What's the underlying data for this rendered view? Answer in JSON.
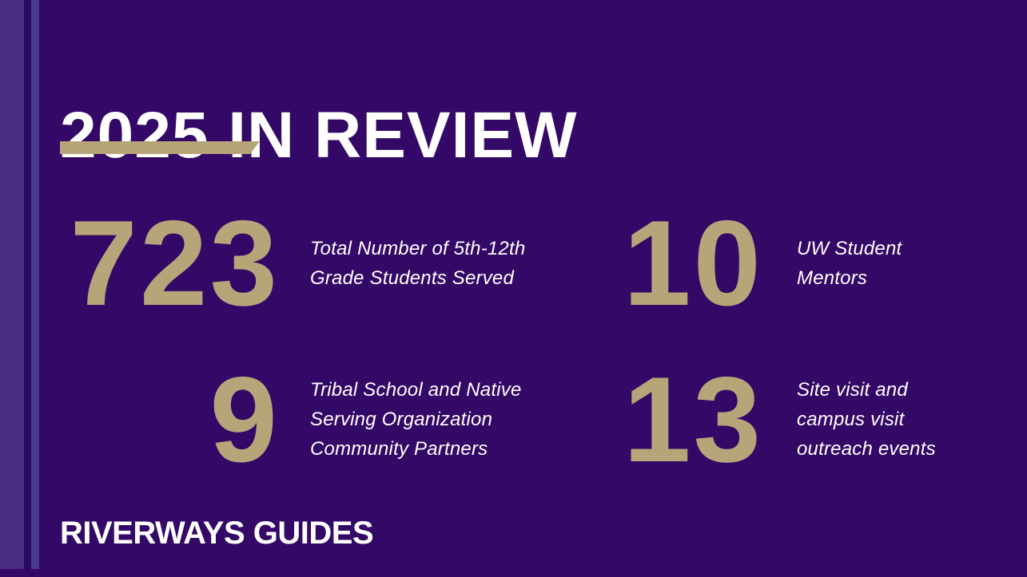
{
  "slide": {
    "title": "2025 IN REVIEW",
    "footer": "RIVERWAYS GUIDES"
  },
  "stats": [
    {
      "value": "723",
      "label": "Total Number of 5th-12th Grade Students Served",
      "lines": [
        "Total Number of 5th-12th",
        "Grade Students Served"
      ]
    },
    {
      "value": "10",
      "label": "UW Student Mentors",
      "lines": [
        "UW Student",
        "Mentors"
      ]
    },
    {
      "value": "9",
      "label": "Tribal School and Native Serving Organization Community Partners",
      "lines": [
        "Tribal School and Native",
        "Serving Organization",
        "Community Partners"
      ]
    },
    {
      "value": "13",
      "label": "Site visit and campus visit outreach events",
      "lines": [
        "Site visit and",
        "campus visit",
        "outreach events"
      ]
    }
  ],
  "colors": {
    "background_purple": "#330866",
    "spine_purple": "#4B2E83",
    "spine_shadow_purple": "#2A0A5C",
    "spine_highlight_purple": "#4A3A8C",
    "accent_gold": "#B7A57A",
    "text_white": "#FFFFFF"
  }
}
